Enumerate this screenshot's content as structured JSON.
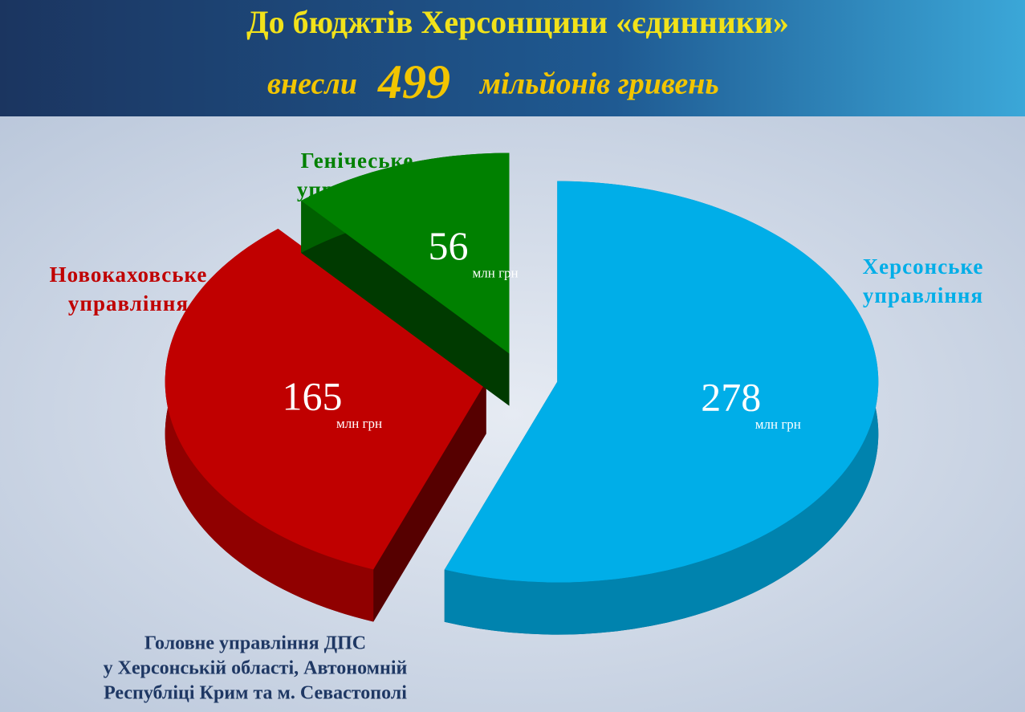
{
  "chart_data": {
    "type": "pie",
    "title": "До бюджтів Херсонщини «єдинники»",
    "subtitle": {
      "before": "внесли",
      "total": 499,
      "after": "мільйонів гривень"
    },
    "categories": [
      "Херсонське управління",
      "Новокаховське управління",
      "Генічеське управління"
    ],
    "values": [
      278,
      165,
      56
    ],
    "colors": [
      "#00aee8",
      "#c00000",
      "#008000"
    ],
    "unit": "млн грн",
    "source": [
      "Головне управління ДПС",
      "у Херсонській області, Автономній",
      "Республіці Крим та м. Севастополі"
    ]
  }
}
